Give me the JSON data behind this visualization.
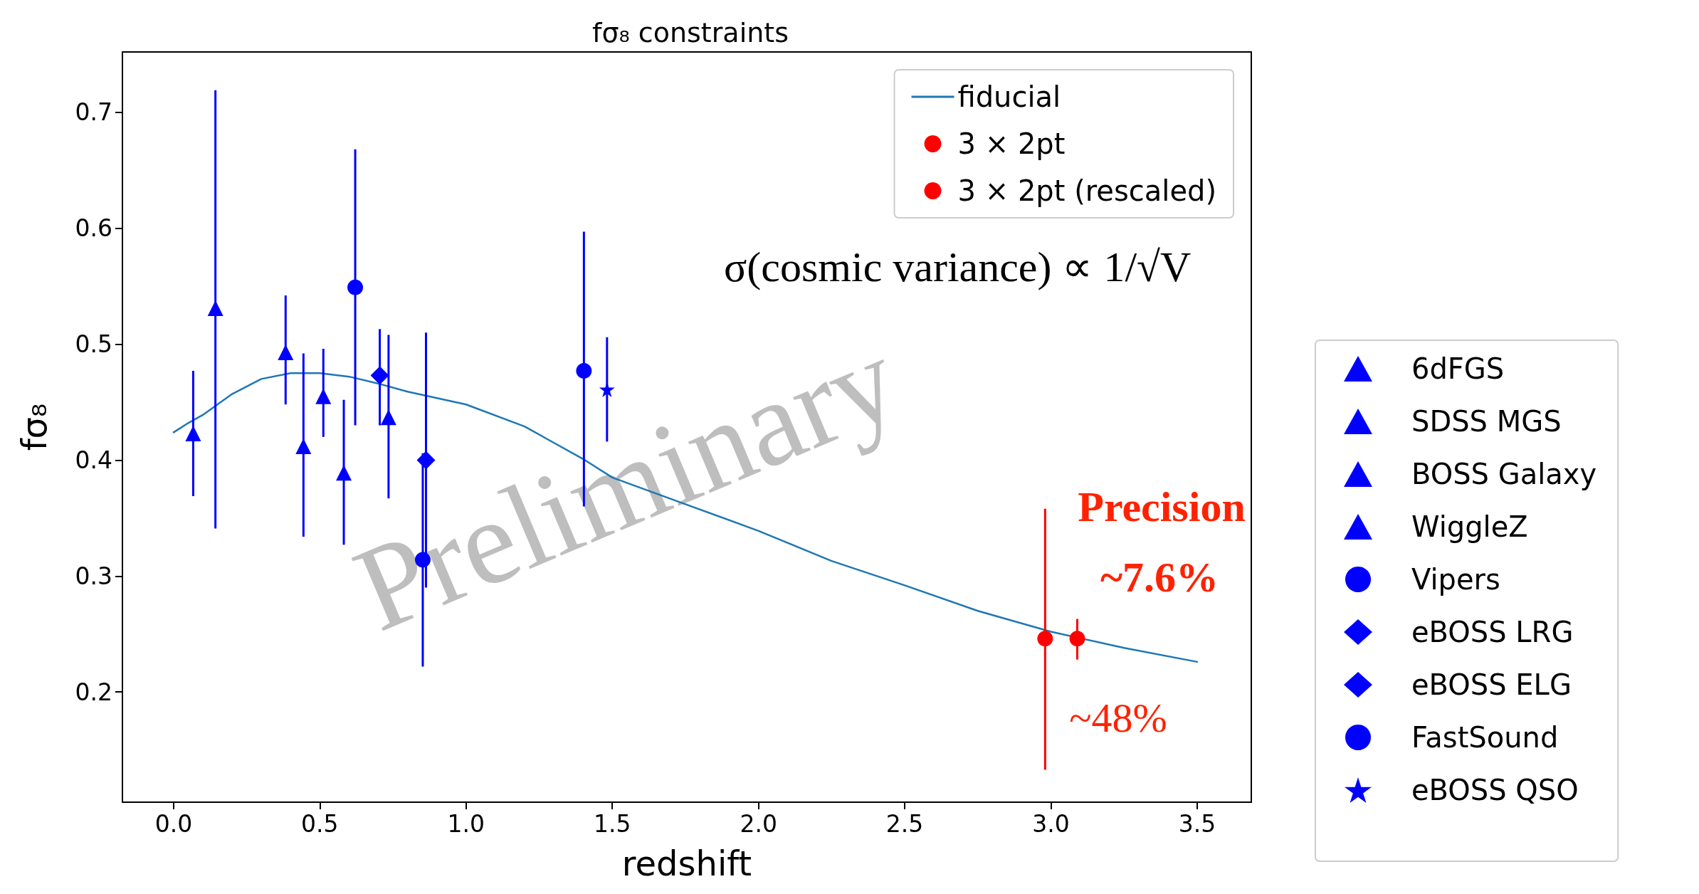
{
  "chart_data": {
    "type": "scatter",
    "title": "fσ₈ constraints",
    "xlabel": "redshift",
    "ylabel": "fσ₈",
    "xlim": [
      -0.175,
      3.685
    ],
    "ylim": [
      0.105,
      0.752
    ],
    "xticks": [
      {
        "value": 0,
        "label": "0.0"
      },
      0.5,
      {
        "value": 1,
        "label": "1.0"
      },
      1.5,
      {
        "value": 2,
        "label": "2.0"
      },
      2.5,
      {
        "value": 3,
        "label": "3.0"
      },
      3.5
    ],
    "yticks": [
      0.2,
      0.3,
      0.4,
      0.5,
      0.6,
      0.7
    ],
    "legend": "right",
    "grid": false,
    "annotations": [
      "σ(cosmic variance) ∝ 1/√V",
      "Preliminary",
      "Precision",
      "~7.6%",
      "~48%"
    ],
    "series": [
      {
        "name": "fiducial",
        "type": "line",
        "color": "#1f77b4",
        "marker": "none",
        "line_style": "solid",
        "x": [
          0,
          0.05,
          0.1,
          0.2,
          0.3,
          0.4,
          0.5,
          0.6,
          0.7,
          0.8,
          1.0,
          1.2,
          1.3,
          1.4,
          1.5,
          1.75,
          2.0,
          2.25,
          2.5,
          2.75,
          3.0,
          3.25,
          3.5
        ],
        "values": [
          0.424,
          0.432,
          0.439,
          0.457,
          0.47,
          0.475,
          0.475,
          0.472,
          0.466,
          0.459,
          0.448,
          0.429,
          0.415,
          0.401,
          0.385,
          0.362,
          0.339,
          0.313,
          0.292,
          0.27,
          0.252,
          0.238,
          0.226
        ]
      },
      {
        "name": "3 × 2pt",
        "color": "#ff0000",
        "marker": "circle",
        "x": [
          2.98
        ],
        "values": [
          0.246
        ],
        "errors": [
          [
            0.133,
            0.358
          ]
        ]
      },
      {
        "name": "3 × 2pt (rescaled)",
        "color": "#ff0000",
        "marker": "circle",
        "x": [
          3.09
        ],
        "values": [
          0.246
        ],
        "errors": [
          [
            0.228,
            0.263
          ]
        ]
      },
      {
        "name": "6dFGS",
        "color": "#0000ff",
        "marker": "triangle",
        "x": [
          0.067
        ],
        "values": [
          0.423
        ],
        "errors": [
          [
            0.369,
            0.477
          ]
        ]
      },
      {
        "name": "SDSS MGS",
        "color": "#0000ff",
        "marker": "triangle",
        "x": [
          0.143
        ],
        "values": [
          0.531
        ],
        "errors": [
          [
            0.341,
            0.719
          ]
        ]
      },
      {
        "name": "BOSS Galaxy",
        "color": "#0000ff",
        "marker": "triangle",
        "x": [
          0.383,
          0.512
        ],
        "values": [
          0.493,
          0.455
        ],
        "errors": [
          [
            0.448,
            0.542
          ],
          [
            0.42,
            0.496
          ]
        ]
      },
      {
        "name": "WiggleZ",
        "color": "#0000ff",
        "marker": "triangle",
        "x": [
          0.444,
          0.582,
          0.735
        ],
        "values": [
          0.412,
          0.389,
          0.437
        ],
        "errors": [
          [
            0.334,
            0.492
          ],
          [
            0.327,
            0.452
          ],
          [
            0.367,
            0.508
          ]
        ]
      },
      {
        "name": "Vipers",
        "color": "#0000ff",
        "marker": "circle",
        "x": [
          0.621,
          0.852
        ],
        "values": [
          0.549,
          0.314
        ],
        "errors": [
          [
            0.43,
            0.668
          ],
          [
            0.222,
            0.406
          ]
        ]
      },
      {
        "name": "eBOSS LRG",
        "color": "#0000ff",
        "marker": "diamond",
        "x": [
          0.705
        ],
        "values": [
          0.473
        ],
        "errors": [
          [
            0.43,
            0.513
          ]
        ]
      },
      {
        "name": "eBOSS ELG",
        "color": "#0000ff",
        "marker": "diamond",
        "x": [
          0.863
        ],
        "values": [
          0.4
        ],
        "errors": [
          [
            0.29,
            0.51
          ]
        ]
      },
      {
        "name": "FastSound",
        "color": "#0000ff",
        "marker": "circle",
        "x": [
          1.403
        ],
        "values": [
          0.477
        ],
        "errors": [
          [
            0.36,
            0.597
          ]
        ]
      },
      {
        "name": "eBOSS QSO",
        "color": "#0000ff",
        "marker": "star",
        "x": [
          1.482
        ],
        "values": [
          0.461
        ],
        "errors": [
          [
            0.416,
            0.506
          ]
        ]
      }
    ]
  }
}
